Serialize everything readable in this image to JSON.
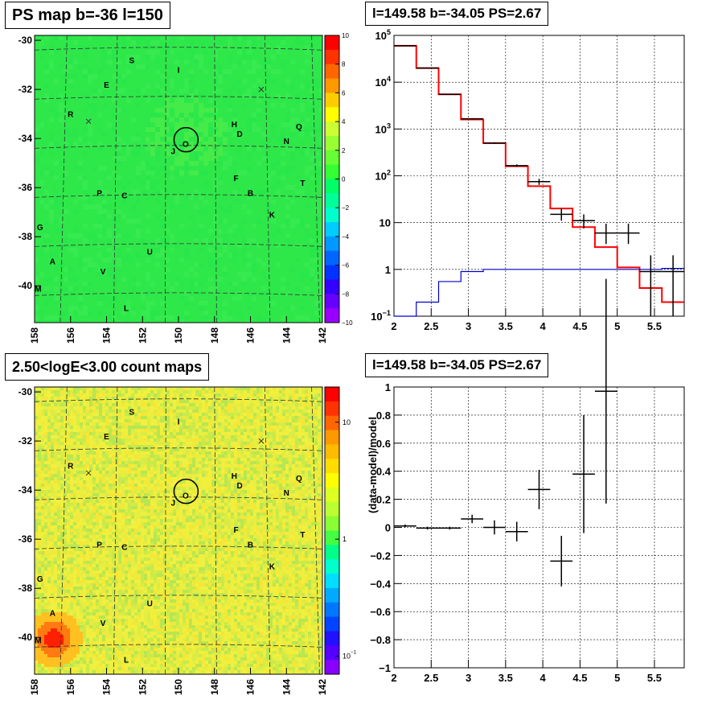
{
  "panels": {
    "tl_title": "PS map b=-36 l=150",
    "tr_title": "l=149.58 b=-34.05 PS=2.67",
    "bl_title": "2.50<logE<3.00 count maps",
    "br_title": "l=149.58 b=-34.05 PS=2.67"
  },
  "colors": {
    "map_green": "#2ee84a",
    "model_red": "#ff0000",
    "bkg_blue": "#0000cc",
    "data_black": "#000000"
  },
  "chart_data": [
    {
      "id": "ps-map",
      "type": "heatmap",
      "title": "PS map b=-36 l=150",
      "x_ticks": [
        "158",
        "156",
        "154",
        "152",
        "150",
        "148",
        "146",
        "144",
        "142"
      ],
      "y_ticks": [
        "-30",
        "-32",
        "-34",
        "-36",
        "-38",
        "-40"
      ],
      "xlim": [
        158,
        142
      ],
      "ylim": [
        -41.5,
        -29.8
      ],
      "z_ticks": [
        "10",
        "8",
        "6",
        "4",
        "2",
        "0",
        "−2",
        "−4",
        "−6",
        "−8",
        "−10"
      ],
      "zlim": [
        -10,
        10
      ],
      "source_labels": [
        {
          "t": "S",
          "l": 152.6,
          "b": -30.8
        },
        {
          "t": "I",
          "l": 150.0,
          "b": -31.2
        },
        {
          "t": "E",
          "l": 154.0,
          "b": -31.8
        },
        {
          "t": "R",
          "l": 156.0,
          "b": -33.0
        },
        {
          "t": "H",
          "l": 146.9,
          "b": -33.4
        },
        {
          "t": "Q",
          "l": 143.3,
          "b": -33.5
        },
        {
          "t": "D",
          "l": 146.6,
          "b": -33.8
        },
        {
          "t": "N",
          "l": 144.0,
          "b": -34.1
        },
        {
          "t": "J",
          "l": 150.3,
          "b": -34.5
        },
        {
          "t": "O",
          "l": 149.6,
          "b": -34.2
        },
        {
          "t": "F",
          "l": 146.8,
          "b": -35.6
        },
        {
          "t": "T",
          "l": 143.1,
          "b": -35.8
        },
        {
          "t": "P",
          "l": 154.4,
          "b": -36.2
        },
        {
          "t": "C",
          "l": 153.0,
          "b": -36.3
        },
        {
          "t": "B",
          "l": 146.0,
          "b": -36.2
        },
        {
          "t": "K",
          "l": 144.8,
          "b": -37.1
        },
        {
          "t": "G",
          "l": 157.7,
          "b": -37.6
        },
        {
          "t": "U",
          "l": 151.6,
          "b": -38.6
        },
        {
          "t": "A",
          "l": 157.0,
          "b": -39.0
        },
        {
          "t": "V",
          "l": 154.2,
          "b": -39.4
        },
        {
          "t": "M",
          "l": 157.8,
          "b": -40.1
        },
        {
          "t": "L",
          "l": 152.9,
          "b": -40.9
        }
      ],
      "markers": [
        {
          "l": 155.0,
          "b": -33.3
        },
        {
          "l": 145.4,
          "b": -32.0
        }
      ],
      "circle": {
        "l": 149.58,
        "b": -34.05
      }
    },
    {
      "id": "spectrum",
      "type": "line",
      "title": "l=149.58 b=-34.05 PS=2.67",
      "xlabel": "",
      "ylabel": "",
      "xlim": [
        2.0,
        5.9
      ],
      "ylim": [
        0.1,
        100000
      ],
      "yscale": "log",
      "x_ticks": [
        "2",
        "2.5",
        "3",
        "3.5",
        "4",
        "4.5",
        "5",
        "5.5"
      ],
      "y_ticks": [
        {
          "v": 100000,
          "t": "10",
          "sup": "5"
        },
        {
          "v": 10000,
          "t": "10",
          "sup": "4"
        },
        {
          "v": 1000,
          "t": "10",
          "sup": "3"
        },
        {
          "v": 100,
          "t": "10",
          "sup": "2"
        },
        {
          "v": 10,
          "t": "10",
          "sup": ""
        },
        {
          "v": 1,
          "t": "1",
          "sup": ""
        },
        {
          "v": 0.1,
          "t": "10",
          "sup": "−1"
        }
      ],
      "grid": true,
      "series": [
        {
          "style": "step",
          "color": "#ff0000",
          "edges": [
            2.0,
            2.3,
            2.6,
            2.9,
            3.2,
            3.5,
            3.8,
            4.1,
            4.4,
            4.7,
            5.0,
            5.3,
            5.6,
            5.9
          ],
          "values": [
            60000,
            20000,
            5500,
            1600,
            500,
            160,
            60,
            20,
            8,
            3,
            1.1,
            0.4,
            0.2
          ]
        },
        {
          "style": "step",
          "color": "#0000cc",
          "edges": [
            2.0,
            2.3,
            2.6,
            2.9,
            3.2,
            3.5,
            3.8,
            4.1,
            4.4,
            4.7,
            5.0,
            5.3,
            5.6,
            5.9
          ],
          "values": [
            0.01,
            0.2,
            0.55,
            0.9,
            1.0,
            1.0,
            1.0,
            1.0,
            1.0,
            1.0,
            1.0,
            1.0,
            1.05
          ]
        },
        {
          "style": "errorbar",
          "color": "#000000",
          "points": [
            {
              "x": 2.15,
              "y": 60000,
              "xerr": 0.15,
              "ylo": 59000,
              "yhi": 61000
            },
            {
              "x": 2.45,
              "y": 20000,
              "xerr": 0.15,
              "ylo": 19700,
              "yhi": 20300
            },
            {
              "x": 2.75,
              "y": 5500,
              "xerr": 0.15,
              "ylo": 5400,
              "yhi": 5600
            },
            {
              "x": 3.05,
              "y": 1650,
              "xerr": 0.15,
              "ylo": 1600,
              "yhi": 1700
            },
            {
              "x": 3.35,
              "y": 500,
              "xerr": 0.15,
              "ylo": 480,
              "yhi": 520
            },
            {
              "x": 3.65,
              "y": 165,
              "xerr": 0.15,
              "ylo": 155,
              "yhi": 175
            },
            {
              "x": 3.95,
              "y": 75,
              "xerr": 0.15,
              "ylo": 64,
              "yhi": 86
            },
            {
              "x": 4.25,
              "y": 15,
              "xerr": 0.15,
              "ylo": 11,
              "yhi": 20
            },
            {
              "x": 4.55,
              "y": 11,
              "xerr": 0.15,
              "ylo": 7.5,
              "yhi": 15
            },
            {
              "x": 4.85,
              "y": 6,
              "xerr": 0.15,
              "ylo": 3.5,
              "yhi": 9.5
            },
            {
              "x": 5.15,
              "y": 6,
              "xerr": 0.15,
              "ylo": 3.5,
              "yhi": 9.5
            },
            {
              "x": 5.45,
              "y": 0.9,
              "xerr": 0.15,
              "ylo": 0.1,
              "yhi": 2.0
            },
            {
              "x": 5.75,
              "y": 0.9,
              "xerr": 0.15,
              "ylo": 0.1,
              "yhi": 2.0
            }
          ]
        }
      ]
    },
    {
      "id": "count-map",
      "type": "heatmap",
      "title": "2.50<logE<3.00 count maps",
      "x_ticks": [
        "158",
        "156",
        "154",
        "152",
        "150",
        "148",
        "146",
        "144",
        "142"
      ],
      "y_ticks": [
        "-30",
        "-32",
        "-34",
        "-36",
        "-38",
        "-40"
      ],
      "xlim": [
        158,
        142
      ],
      "ylim": [
        -41.5,
        -29.8
      ],
      "z_ticks": [
        {
          "v": 10,
          "t": "10",
          "sup": ""
        },
        {
          "v": 1,
          "t": "1",
          "sup": ""
        },
        {
          "v": 0.1,
          "t": "10",
          "sup": "−1"
        }
      ],
      "zscale": "log",
      "zlim": [
        0.07,
        20
      ]
    },
    {
      "id": "residuals",
      "type": "scatter",
      "title": "l=149.58 b=-34.05 PS=2.67",
      "ylabel": "(data-model)/model",
      "xlim": [
        2.0,
        5.9
      ],
      "ylim": [
        -1,
        1
      ],
      "x_ticks": [
        "2",
        "2.5",
        "3",
        "3.5",
        "4",
        "4.5",
        "5",
        "5.5"
      ],
      "y_ticks": [
        "1",
        "0.8",
        "0.6",
        "0.4",
        "0.2",
        "0",
        "−0.2",
        "−0.4",
        "−0.6",
        "−0.8",
        "−1"
      ],
      "grid": true,
      "points": [
        {
          "x": 2.15,
          "y": 0.01,
          "xerr": 0.15,
          "yerr": 0.01
        },
        {
          "x": 2.45,
          "y": -0.005,
          "xerr": 0.15,
          "yerr": 0.01
        },
        {
          "x": 2.75,
          "y": -0.005,
          "xerr": 0.15,
          "yerr": 0.01
        },
        {
          "x": 3.05,
          "y": 0.06,
          "xerr": 0.15,
          "yerr": 0.03
        },
        {
          "x": 3.35,
          "y": 0.0,
          "xerr": 0.15,
          "yerr": 0.05
        },
        {
          "x": 3.65,
          "y": -0.03,
          "xerr": 0.15,
          "yerr": 0.07
        },
        {
          "x": 3.95,
          "y": 0.27,
          "xerr": 0.15,
          "yerr": 0.14
        },
        {
          "x": 4.25,
          "y": -0.24,
          "xerr": 0.15,
          "yerr": 0.18
        },
        {
          "x": 4.55,
          "y": 0.38,
          "xerr": 0.15,
          "yerr": 0.42
        },
        {
          "x": 4.85,
          "y": 0.97,
          "xerr": 0.15,
          "yerr": 0.8
        }
      ]
    }
  ]
}
